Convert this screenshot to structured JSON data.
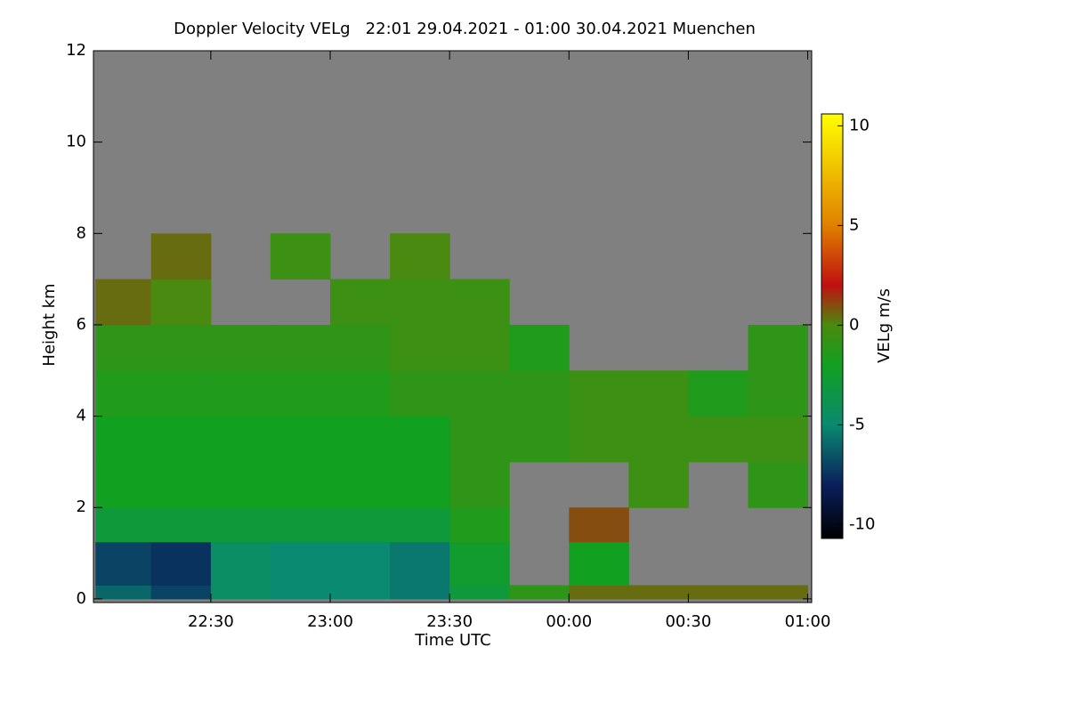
{
  "chart_data": {
    "type": "heatmap",
    "title": "Doppler Velocity VELg   22:01 29.04.2021 - 01:00 30.04.2021 Muenchen",
    "x_label": "Time UTC",
    "y_label": "Height km",
    "colorbar_label": "VELg m/s",
    "background": "#808080",
    "xlim": [
      0.5,
      181
    ],
    "xticks": [
      {
        "value": 30,
        "label": "22:30"
      },
      {
        "value": 60,
        "label": "23:00"
      },
      {
        "value": 90,
        "label": "23:30"
      },
      {
        "value": 120,
        "label": "00:00"
      },
      {
        "value": 150,
        "label": "00:30"
      },
      {
        "value": 180,
        "label": "01:00"
      }
    ],
    "ylim": [
      -0.08,
      12
    ],
    "yticks": [
      0,
      2,
      4,
      6,
      8,
      10,
      12
    ],
    "clim": [
      -10.7,
      10.6
    ],
    "cticks": [
      -10,
      -5,
      0,
      5,
      10
    ],
    "colorscale": [
      {
        "value": -10.7,
        "color": "#000000"
      },
      {
        "value": -8,
        "color": "#0a205c"
      },
      {
        "value": -5,
        "color": "#0a8a70"
      },
      {
        "value": -2,
        "color": "#12a020"
      },
      {
        "value": 0,
        "color": "#4a8a10"
      },
      {
        "value": 2,
        "color": "#c01010"
      },
      {
        "value": 5,
        "color": "#e08000"
      },
      {
        "value": 10.6,
        "color": "#ffff00"
      }
    ],
    "x": [
      1,
      15,
      30,
      45,
      60,
      75,
      90,
      105,
      120,
      135,
      150,
      165,
      180
    ],
    "y": [
      0,
      0.3,
      1.25,
      2,
      3,
      4,
      5,
      6,
      7,
      8,
      12
    ],
    "values": [
      [
        -6,
        -7,
        -4.5,
        -5,
        -5,
        -5.5,
        -3,
        -1,
        0.5,
        0.5,
        0.5,
        0.5
      ],
      [
        -7,
        -7.5,
        -4.5,
        -5,
        -5,
        -5.5,
        -2.5,
        null,
        -2,
        null,
        null,
        null
      ],
      [
        -3,
        -3,
        -3,
        -3,
        -3,
        -3,
        -1.5,
        null,
        1,
        null,
        null,
        null
      ],
      [
        -2,
        -2,
        -2,
        -2,
        -2,
        -2,
        -1,
        null,
        null,
        -0.5,
        null,
        -1
      ],
      [
        -2,
        -2,
        -2,
        -2,
        -2,
        -2,
        -1,
        -1,
        -0.5,
        -0.5,
        -0.5,
        -0.5
      ],
      [
        -1.5,
        -1.5,
        -1.5,
        -1.5,
        -1.5,
        -1,
        -1,
        -1,
        -0.5,
        -0.5,
        -1.5,
        -1
      ],
      [
        -1,
        -1,
        -1,
        -1,
        -1,
        -0.5,
        -0.5,
        -1.5,
        null,
        null,
        null,
        -1
      ],
      [
        0.5,
        0,
        null,
        null,
        -0.5,
        -0.5,
        -0.5,
        null,
        null,
        null,
        null,
        null
      ],
      [
        null,
        0.5,
        null,
        -0.5,
        null,
        0,
        null,
        null,
        null,
        null,
        null,
        null
      ],
      [
        null,
        null,
        null,
        null,
        null,
        null,
        null,
        null,
        null,
        null,
        null,
        null
      ]
    ]
  }
}
